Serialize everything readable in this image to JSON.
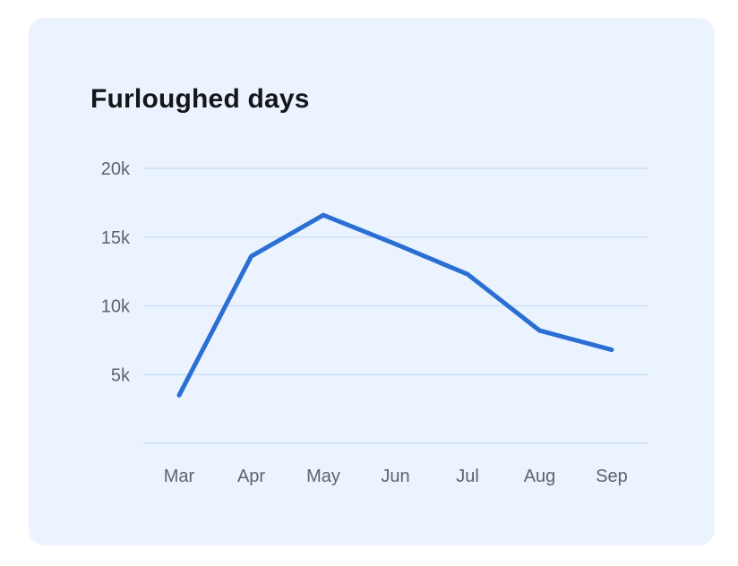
{
  "chart_data": {
    "type": "line",
    "title": "Furloughed days",
    "xlabel": "",
    "ylabel": "",
    "categories": [
      "Mar",
      "Apr",
      "May",
      "Jun",
      "Jul",
      "Aug",
      "Sep"
    ],
    "y_ticks": [
      {
        "value": 5000,
        "label": "5k"
      },
      {
        "value": 10000,
        "label": "10k"
      },
      {
        "value": 15000,
        "label": "15k"
      },
      {
        "value": 20000,
        "label": "20k"
      }
    ],
    "ylim": [
      0,
      20000
    ],
    "grid": true,
    "series": [
      {
        "values": [
          3500,
          13600,
          16600,
          14500,
          12300,
          8200,
          6800
        ],
        "color": "#2b6fd4"
      }
    ],
    "colors": {
      "card_background": "#eaf3fe",
      "gridline": "#cfe0f5",
      "tick_text": "#5b6470",
      "title_text": "#14161a"
    }
  }
}
